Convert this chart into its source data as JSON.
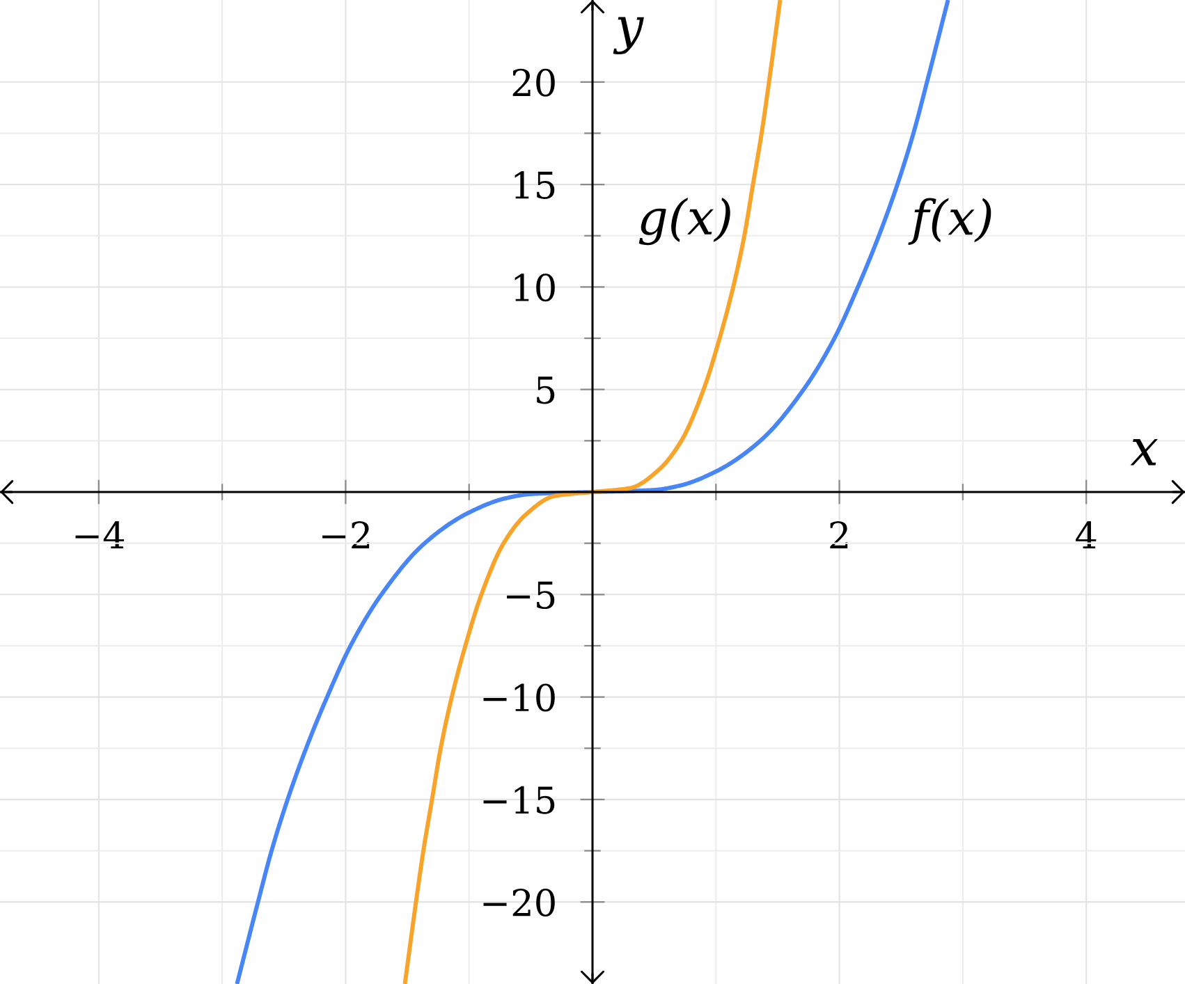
{
  "chart_data": {
    "type": "line",
    "xlabel": "x",
    "ylabel": "y",
    "xlim": [
      -4.8,
      4.8
    ],
    "ylim": [
      -24,
      24
    ],
    "xticks": [
      {
        "value": -4,
        "label": "−4"
      },
      {
        "value": -3,
        "label": null
      },
      {
        "value": -2,
        "label": "−2"
      },
      {
        "value": -1,
        "label": null
      },
      {
        "value": 1,
        "label": null
      },
      2,
      {
        "value": 3,
        "label": null
      },
      4
    ],
    "yticks": [
      {
        "value": -20,
        "label": "−20"
      },
      {
        "value": -17.5,
        "label": null
      },
      {
        "value": -15,
        "label": "−15"
      },
      {
        "value": -12.5,
        "label": null
      },
      {
        "value": -10,
        "label": "−10"
      },
      {
        "value": -7.5,
        "label": null
      },
      {
        "value": -5,
        "label": "−5"
      },
      {
        "value": -2.5,
        "label": null
      },
      {
        "value": 2.5,
        "label": null
      },
      5,
      {
        "value": 7.5,
        "label": null
      },
      10,
      {
        "value": 12.5,
        "label": null
      },
      15,
      {
        "value": 17.5,
        "label": null
      },
      20
    ],
    "grid": true,
    "series": [
      {
        "name": "f(x)",
        "color": "#4886f7",
        "x": [
          -2.88,
          -2.71,
          -2.6,
          -2.47,
          -2.32,
          -2.15,
          -1.96,
          -1.71,
          -1.36,
          -1.0,
          -0.7,
          -0.5,
          0,
          0.5,
          0.7,
          1.0,
          1.36,
          1.71,
          1.96,
          2.15,
          2.32,
          2.47,
          2.6,
          2.71,
          2.88
        ],
        "values": [
          -24,
          -20,
          -17.5,
          -15,
          -12.5,
          -10,
          -7.5,
          -5,
          -2.5,
          -1.0,
          -0.3,
          -0.1,
          0,
          0.1,
          0.3,
          1.0,
          2.5,
          5,
          7.5,
          10,
          12.5,
          15,
          17.5,
          20,
          24
        ]
      },
      {
        "name": "g(x)",
        "color": "#f8a42b",
        "x": [
          -1.52,
          -1.43,
          -1.37,
          -1.3,
          -1.23,
          -1.14,
          -1.03,
          -0.9,
          -0.72,
          -0.54,
          -0.31,
          0,
          0.31,
          0.54,
          0.72,
          0.9,
          1.03,
          1.14,
          1.23,
          1.3,
          1.37,
          1.43,
          1.52
        ],
        "values": [
          -24,
          -20,
          -17.5,
          -15,
          -12.5,
          -10,
          -7.5,
          -5,
          -2.5,
          -1.1,
          -0.2,
          0,
          0.2,
          1.1,
          2.5,
          5,
          7.5,
          10,
          12.5,
          15,
          17.5,
          20,
          24
        ]
      }
    ]
  }
}
